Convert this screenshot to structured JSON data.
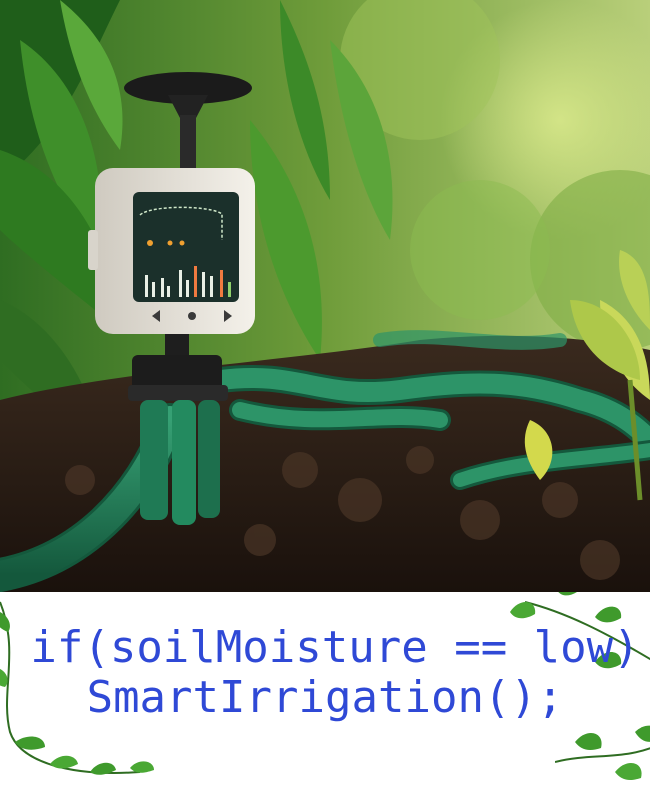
{
  "caption": {
    "line1": "if(soilMoisture == low)",
    "line2": "SmartIrrigation();",
    "color": "#2f49d6"
  },
  "photo": {
    "subject": "smart soil moisture sensor with display",
    "colors": {
      "soil": "#2a1c14",
      "hose": "#1f7a55",
      "device_body": "#e9e6de",
      "screen": "#1f3a33",
      "foliage": "#3f8f2a"
    }
  },
  "icons": {
    "vine_left": "vine-decoration",
    "vine_right": "vine-decoration"
  }
}
